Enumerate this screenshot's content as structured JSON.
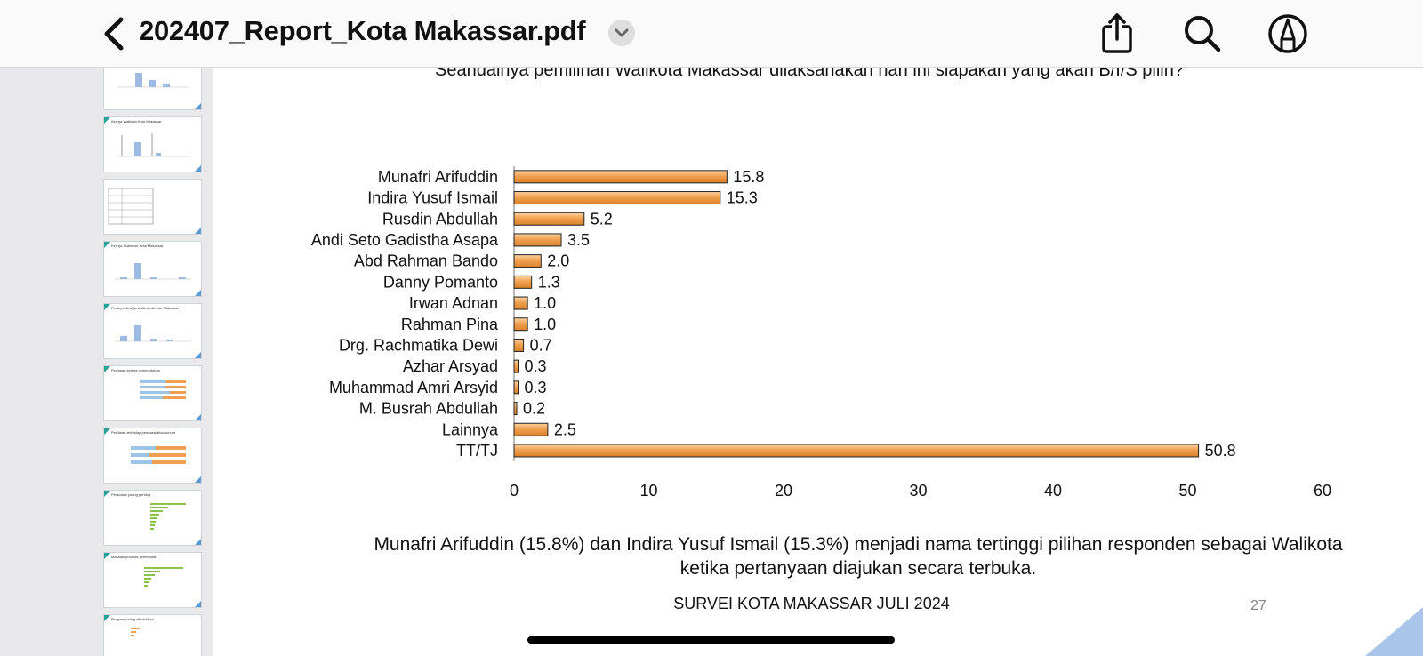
{
  "header": {
    "title": "202407_Report_Kota Makassar.pdf",
    "icons": [
      "chevron-left-icon",
      "chevron-down-icon",
      "share-icon",
      "search-icon",
      "markup-icon"
    ]
  },
  "sidebar": {
    "thumbnails": [
      {
        "title": ""
      },
      {
        "title": "Kinerja Walikota Kota Makassar"
      },
      {
        "title": ""
      },
      {
        "title": "Kinerja Gubernur Kota Makassar"
      },
      {
        "title": "Persepsi kinerja walikota di Kota Makassar"
      },
      {
        "title": "Penilaian kinerja pemerintahan"
      },
      {
        "title": "Penilaian terhadap permasalahan umum"
      },
      {
        "title": "Persoalan paling penting"
      },
      {
        "title": "Masalah prioritas pemerintah"
      },
      {
        "title": "Program paling dibutuhkan"
      }
    ]
  },
  "slide": {
    "question": "Seandainya pemilihan Walikota Makassar dilaksanakan hari ini siapakan yang akan B/I/S pilih?",
    "summary_line1": "Munafri Arifuddin (15.8%) dan Indira Yusuf Ismail (15.3%) menjadi nama tertinggi pilihan responden sebagai Walikota",
    "summary_line2": "ketika pertanyaan diajukan secara terbuka.",
    "footer": "SURVEI KOTA MAKASSAR JULI 2024",
    "page_number": "27"
  },
  "chart_data": {
    "type": "bar",
    "orientation": "horizontal",
    "categories": [
      "Munafri Arifuddin",
      "Indira Yusuf Ismail",
      "Rusdin Abdullah",
      "Andi Seto Gadistha Asapa",
      "Abd Rahman Bando",
      "Danny Pomanto",
      "Irwan Adnan",
      "Rahman Pina",
      "Drg. Rachmatika Dewi",
      "Azhar Arsyad",
      "Muhammad Amri Arsyid",
      "M. Busrah Abdullah",
      "Lainnya",
      "TT/TJ"
    ],
    "values": [
      15.8,
      15.3,
      5.2,
      3.5,
      2.0,
      1.3,
      1.0,
      1.0,
      0.7,
      0.3,
      0.3,
      0.2,
      2.5,
      50.8
    ],
    "value_labels": [
      "15.8",
      "15.3",
      "5.2",
      "3.5",
      "2.0",
      "1.3",
      "1.0",
      "1.0",
      "0.7",
      "0.3",
      "0.3",
      "0.2",
      "2.5",
      "50.8"
    ],
    "xlim": [
      0,
      60
    ],
    "xticks": [
      0,
      10,
      20,
      30,
      40,
      50,
      60
    ],
    "bar_color": "#f0a050",
    "bar_highlight": "#fbd3a2",
    "bar_edge": "#222222",
    "grid": false
  }
}
